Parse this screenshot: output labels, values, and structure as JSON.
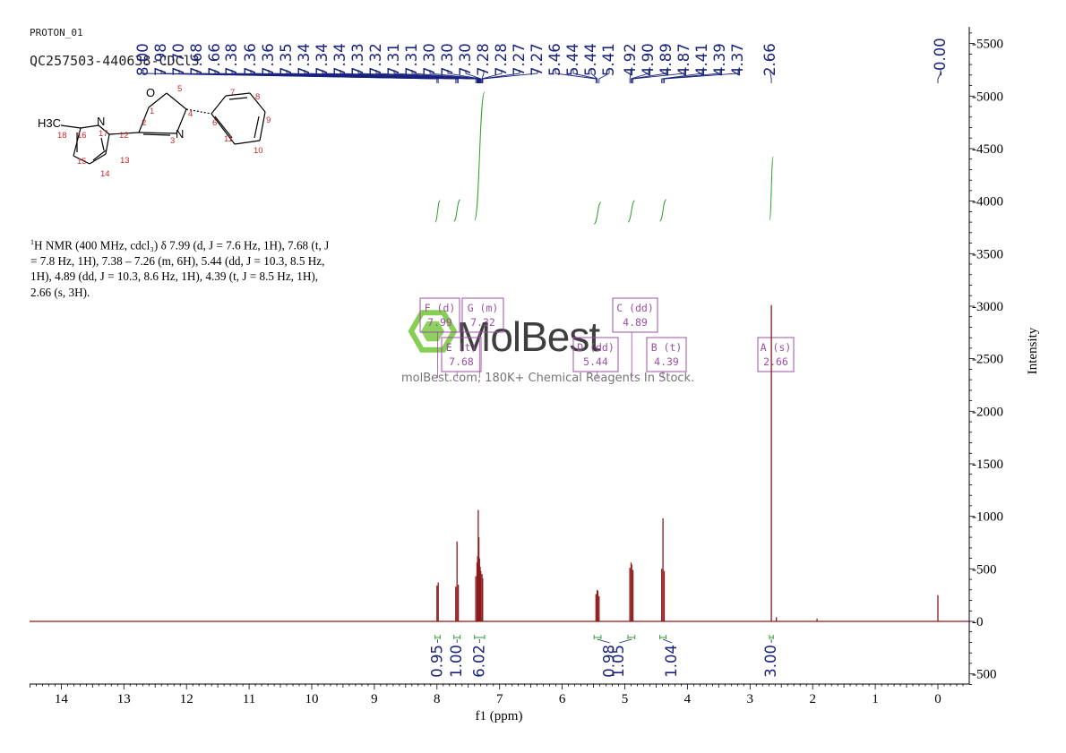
{
  "header": {
    "pulse_name": "PROTON_01",
    "sample_id": "QC257503-440638-CDCl3"
  },
  "description": {
    "nucleus_sup": "1",
    "text": "H NMR (400 MHz, cdcl₃) δ 7.99 (d, J = 7.6 Hz, 1H), 7.68 (t, J = 7.8 Hz, 1H), 7.38 – 7.26 (m, 6H), 5.44 (dd, J = 10.3, 8.5 Hz, 1H), 4.89 (dd, J = 10.3, 8.6 Hz, 1H), 4.39 (t, J = 8.5 Hz, 1H), 2.66 (s, 3H)."
  },
  "watermark": {
    "brand": "MolBest",
    "tagline": "molBest.com, 180K+ Chemical Reagents In Stock."
  },
  "structure": {
    "atoms": [
      {
        "label": "H3C",
        "color": "#000000"
      },
      {
        "label": "N",
        "color": "#000000"
      },
      {
        "label": "O",
        "color": "#000000"
      },
      {
        "label": "N",
        "color": "#000000"
      }
    ],
    "numbers": [
      "18",
      "16",
      "17",
      "12",
      "15",
      "13",
      "14",
      "2",
      "1",
      "3",
      "5",
      "4",
      "6",
      "7",
      "8",
      "9",
      "10",
      "11"
    ]
  },
  "chart_data": {
    "type": "line",
    "xlabel": "f1 (ppm)",
    "ylabel": "Intensity",
    "xlim": [
      14.6,
      -0.5
    ],
    "ylim": [
      -600,
      5600
    ],
    "x_ticks": [
      14,
      13,
      12,
      11,
      10,
      9,
      8,
      7,
      6,
      5,
      4,
      3,
      2,
      1,
      0
    ],
    "y_ticks": [
      -500,
      0,
      500,
      1000,
      1500,
      2000,
      2500,
      3000,
      3500,
      4000,
      4500,
      5000,
      5500
    ],
    "peak_labels": [
      "8.00",
      "7.98",
      "7.70",
      "7.68",
      "7.66",
      "7.38",
      "7.36",
      "7.36",
      "7.35",
      "7.34",
      "7.34",
      "7.34",
      "7.33",
      "7.32",
      "7.31",
      "7.31",
      "7.30",
      "7.30",
      "7.30",
      "7.28",
      "7.28",
      "7.27",
      "7.27",
      "5.46",
      "5.44",
      "5.44",
      "5.41",
      "4.92",
      "4.90",
      "4.89",
      "4.87",
      "4.41",
      "4.39",
      "4.37",
      "2.66",
      "-0.00"
    ],
    "peaks": [
      {
        "ppm": 8.0,
        "height": 340
      },
      {
        "ppm": 7.98,
        "height": 370
      },
      {
        "ppm": 7.7,
        "height": 330
      },
      {
        "ppm": 7.68,
        "height": 760
      },
      {
        "ppm": 7.66,
        "height": 350
      },
      {
        "ppm": 7.38,
        "height": 430
      },
      {
        "ppm": 7.36,
        "height": 560
      },
      {
        "ppm": 7.35,
        "height": 620
      },
      {
        "ppm": 7.34,
        "height": 1060
      },
      {
        "ppm": 7.33,
        "height": 800
      },
      {
        "ppm": 7.32,
        "height": 600
      },
      {
        "ppm": 7.31,
        "height": 520
      },
      {
        "ppm": 7.3,
        "height": 480
      },
      {
        "ppm": 7.28,
        "height": 450
      },
      {
        "ppm": 7.27,
        "height": 410
      },
      {
        "ppm": 5.46,
        "height": 260
      },
      {
        "ppm": 5.44,
        "height": 300
      },
      {
        "ppm": 5.43,
        "height": 290
      },
      {
        "ppm": 5.41,
        "height": 240
      },
      {
        "ppm": 4.92,
        "height": 510
      },
      {
        "ppm": 4.9,
        "height": 560
      },
      {
        "ppm": 4.89,
        "height": 540
      },
      {
        "ppm": 4.87,
        "height": 490
      },
      {
        "ppm": 4.41,
        "height": 500
      },
      {
        "ppm": 4.39,
        "height": 980
      },
      {
        "ppm": 4.37,
        "height": 480
      },
      {
        "ppm": 2.66,
        "height": 3010
      },
      {
        "ppm": 2.58,
        "height": 40
      },
      {
        "ppm": 1.93,
        "height": 25
      },
      {
        "ppm": 0.0,
        "height": 250
      }
    ],
    "integrals": [
      {
        "from": 8.03,
        "to": 7.95,
        "value": "0.95",
        "pos": 7.99
      },
      {
        "from": 7.73,
        "to": 7.63,
        "value": "1.00",
        "pos": 7.68
      },
      {
        "from": 7.4,
        "to": 7.24,
        "value": "6.02",
        "pos": 7.32
      },
      {
        "from": 5.49,
        "to": 5.38,
        "value": "0.98",
        "pos": 5.44
      },
      {
        "from": 4.95,
        "to": 4.84,
        "value": "1.05",
        "pos": 4.89
      },
      {
        "from": 4.44,
        "to": 4.34,
        "value": "1.04",
        "pos": 4.39
      },
      {
        "from": 2.69,
        "to": 2.63,
        "value": "3.00",
        "pos": 2.66
      }
    ],
    "multiplets": [
      {
        "letter": "F",
        "type": "d",
        "shift": "7.99",
        "ppm": 7.99
      },
      {
        "letter": "G",
        "type": "m",
        "shift": "7.32",
        "ppm": 7.32
      },
      {
        "letter": "E",
        "type": "t",
        "shift": "7.68",
        "ppm": 7.68
      },
      {
        "letter": "C",
        "type": "dd",
        "shift": "4.89",
        "ppm": 4.89
      },
      {
        "letter": "D",
        "type": "dd",
        "shift": "5.44",
        "ppm": 5.44
      },
      {
        "letter": "B",
        "type": "t",
        "shift": "4.39",
        "ppm": 4.39
      },
      {
        "letter": "A",
        "type": "s",
        "shift": "2.66",
        "ppm": 2.66
      }
    ],
    "colors": {
      "spectrum": "#8b1a1a",
      "peak_labels": "#1a237e",
      "integral_curve": "#2e9e2e",
      "multiplet_box": "#9c4fa5",
      "axis": "#000000"
    }
  }
}
